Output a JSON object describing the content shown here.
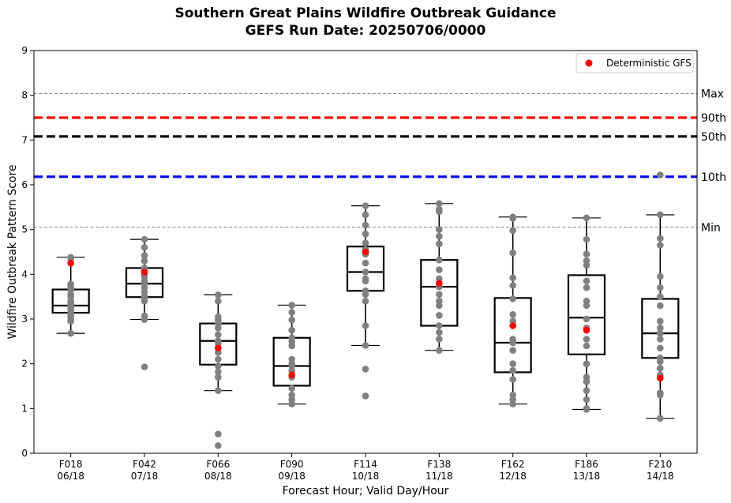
{
  "chart_data": {
    "type": "box",
    "title": "Southern Great Plains Wildfire Outbreak Guidance",
    "subtitle": "GEFS Run Date: 20250706/0000",
    "xlabel": "Forecast Hour; Valid Day/Hour",
    "ylabel": "Wildfire Outbreak Pattern Score",
    "ylim": [
      0,
      9
    ],
    "yticks": [
      "0",
      "1",
      "2",
      "3",
      "4",
      "5",
      "6",
      "7",
      "8",
      "9"
    ],
    "categories": [
      {
        "hour": "F018",
        "valid": "06/18"
      },
      {
        "hour": "F042",
        "valid": "07/18"
      },
      {
        "hour": "F066",
        "valid": "08/18"
      },
      {
        "hour": "F090",
        "valid": "09/18"
      },
      {
        "hour": "F114",
        "valid": "10/18"
      },
      {
        "hour": "F138",
        "valid": "11/18"
      },
      {
        "hour": "F162",
        "valid": "12/18"
      },
      {
        "hour": "F186",
        "valid": "13/18"
      },
      {
        "hour": "F210",
        "valid": "14/18"
      }
    ],
    "boxes": [
      {
        "whisker_low": 2.68,
        "q1": 3.14,
        "median": 3.3,
        "q3": 3.66,
        "whisker_high": 4.38
      },
      {
        "whisker_low": 2.99,
        "q1": 3.49,
        "median": 3.79,
        "q3": 4.14,
        "whisker_high": 4.78
      },
      {
        "whisker_low": 1.4,
        "q1": 1.98,
        "median": 2.51,
        "q3": 2.9,
        "whisker_high": 3.54
      },
      {
        "whisker_low": 1.1,
        "q1": 1.51,
        "median": 1.95,
        "q3": 2.58,
        "whisker_high": 3.31
      },
      {
        "whisker_low": 2.41,
        "q1": 3.63,
        "median": 4.05,
        "q3": 4.62,
        "whisker_high": 5.53
      },
      {
        "whisker_low": 2.3,
        "q1": 2.85,
        "median": 3.72,
        "q3": 4.32,
        "whisker_high": 5.58
      },
      {
        "whisker_low": 1.1,
        "q1": 1.81,
        "median": 2.47,
        "q3": 3.47,
        "whisker_high": 5.28
      },
      {
        "whisker_low": 0.98,
        "q1": 2.21,
        "median": 3.03,
        "q3": 3.98,
        "whisker_high": 5.26
      },
      {
        "whisker_low": 0.78,
        "q1": 2.13,
        "median": 2.68,
        "q3": 3.45,
        "whisker_high": 5.33
      }
    ],
    "members": [
      [
        2.68,
        2.95,
        3.0,
        3.05,
        3.1,
        3.14,
        3.2,
        3.25,
        3.3,
        3.35,
        3.4,
        3.5,
        3.55,
        3.65,
        3.72,
        3.78,
        4.35,
        4.38
      ],
      [
        1.93,
        2.99,
        3.07,
        3.4,
        3.45,
        3.5,
        3.6,
        3.7,
        3.79,
        3.85,
        3.95,
        4.0,
        4.1,
        4.14,
        4.3,
        4.42,
        4.6,
        4.78
      ],
      [
        0.17,
        0.43,
        1.4,
        1.7,
        1.82,
        1.95,
        2.1,
        2.25,
        2.35,
        2.45,
        2.51,
        2.65,
        2.8,
        2.9,
        2.98,
        3.05,
        3.4,
        3.54
      ],
      [
        1.1,
        1.2,
        1.3,
        1.45,
        1.7,
        1.85,
        1.95,
        2.0,
        2.1,
        2.4,
        2.5,
        2.58,
        2.75,
        2.98,
        3.15,
        3.31
      ],
      [
        1.28,
        1.88,
        2.41,
        2.85,
        3.4,
        3.55,
        3.63,
        3.85,
        3.9,
        4.05,
        4.25,
        4.45,
        4.55,
        4.7,
        4.9,
        5.1,
        5.33,
        5.53
      ],
      [
        2.3,
        2.55,
        2.7,
        2.85,
        3.08,
        3.3,
        3.4,
        3.55,
        3.72,
        3.9,
        4.1,
        4.32,
        4.68,
        4.85,
        5.0,
        5.4,
        5.45,
        5.58
      ],
      [
        1.1,
        1.2,
        1.3,
        1.65,
        1.85,
        2.0,
        2.3,
        2.47,
        2.55,
        2.95,
        3.1,
        3.45,
        3.75,
        3.92,
        4.48,
        4.98,
        5.25,
        5.28
      ],
      [
        0.98,
        1.0,
        1.2,
        1.4,
        1.6,
        1.7,
        2.0,
        2.4,
        2.55,
        2.8,
        3.0,
        3.3,
        3.4,
        3.7,
        3.85,
        4.2,
        4.3,
        4.45,
        4.78,
        5.26
      ],
      [
        0.78,
        1.3,
        1.35,
        1.75,
        1.9,
        2.05,
        2.13,
        2.35,
        2.55,
        2.68,
        2.8,
        2.95,
        3.3,
        3.5,
        3.7,
        3.95,
        4.65,
        4.8,
        5.33,
        6.22
      ]
    ],
    "deterministic": {
      "name": "Deterministic GFS",
      "values": [
        4.25,
        4.05,
        2.35,
        1.75,
        4.5,
        3.8,
        2.85,
        2.75,
        1.68
      ]
    },
    "reference_lines": [
      {
        "label": "Max",
        "value": 8.04,
        "color": "#808080",
        "style": "dashed-thin"
      },
      {
        "label": "90th",
        "value": 7.5,
        "color": "#ff0000",
        "style": "dashed-thick"
      },
      {
        "label": "50th",
        "value": 7.08,
        "color": "#000000",
        "style": "dashed-thick"
      },
      {
        "label": "10th",
        "value": 6.18,
        "color": "#0000ff",
        "style": "dashed-thick"
      },
      {
        "label": "Min",
        "value": 5.05,
        "color": "#808080",
        "style": "dashed-thin"
      }
    ],
    "legend_position": "top-right",
    "grid": false,
    "colors": {
      "member_points": "#808080",
      "deterministic_points": "#ff0000",
      "box": "#000000"
    }
  }
}
